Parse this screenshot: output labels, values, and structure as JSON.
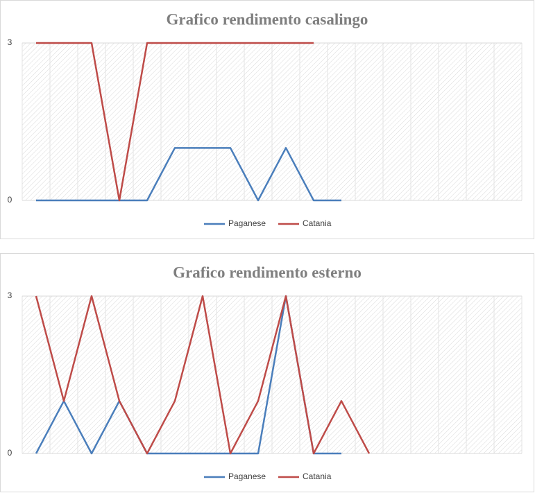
{
  "chart_data": [
    {
      "type": "line",
      "title": "Grafico rendimento casalingo",
      "categories": [
        null,
        null,
        null,
        null,
        null,
        null,
        null,
        null,
        null,
        null,
        null,
        null,
        null,
        null,
        null,
        null,
        null,
        null
      ],
      "series": [
        {
          "name": "Paganese",
          "color": "#4a7ebb",
          "values": [
            0,
            0,
            0,
            0,
            0,
            1,
            1,
            1,
            0,
            1,
            0,
            0,
            null,
            null,
            null,
            null,
            null,
            null
          ]
        },
        {
          "name": "Catania",
          "color": "#be4b48",
          "values": [
            3,
            3,
            3,
            0,
            3,
            3,
            3,
            3,
            3,
            3,
            3,
            null,
            null,
            null,
            null,
            null,
            null,
            null
          ]
        }
      ],
      "ylim": [
        0,
        3
      ],
      "yticks": [
        0,
        3
      ],
      "legend": "bottom"
    },
    {
      "type": "line",
      "title": "Grafico rendimento esterno",
      "categories": [
        null,
        null,
        null,
        null,
        null,
        null,
        null,
        null,
        null,
        null,
        null,
        null,
        null,
        null,
        null,
        null,
        null,
        null
      ],
      "series": [
        {
          "name": "Paganese",
          "color": "#4a7ebb",
          "values": [
            0,
            1,
            0,
            1,
            0,
            0,
            0,
            0,
            0,
            3,
            0,
            0,
            null,
            null,
            null,
            null,
            null,
            null
          ]
        },
        {
          "name": "Catania",
          "color": "#be4b48",
          "values": [
            3,
            1,
            3,
            1,
            0,
            1,
            3,
            0,
            1,
            3,
            0,
            1,
            0,
            null,
            null,
            null,
            null,
            null
          ]
        }
      ],
      "ylim": [
        0,
        3
      ],
      "yticks": [
        0,
        3
      ],
      "legend": "bottom"
    }
  ]
}
